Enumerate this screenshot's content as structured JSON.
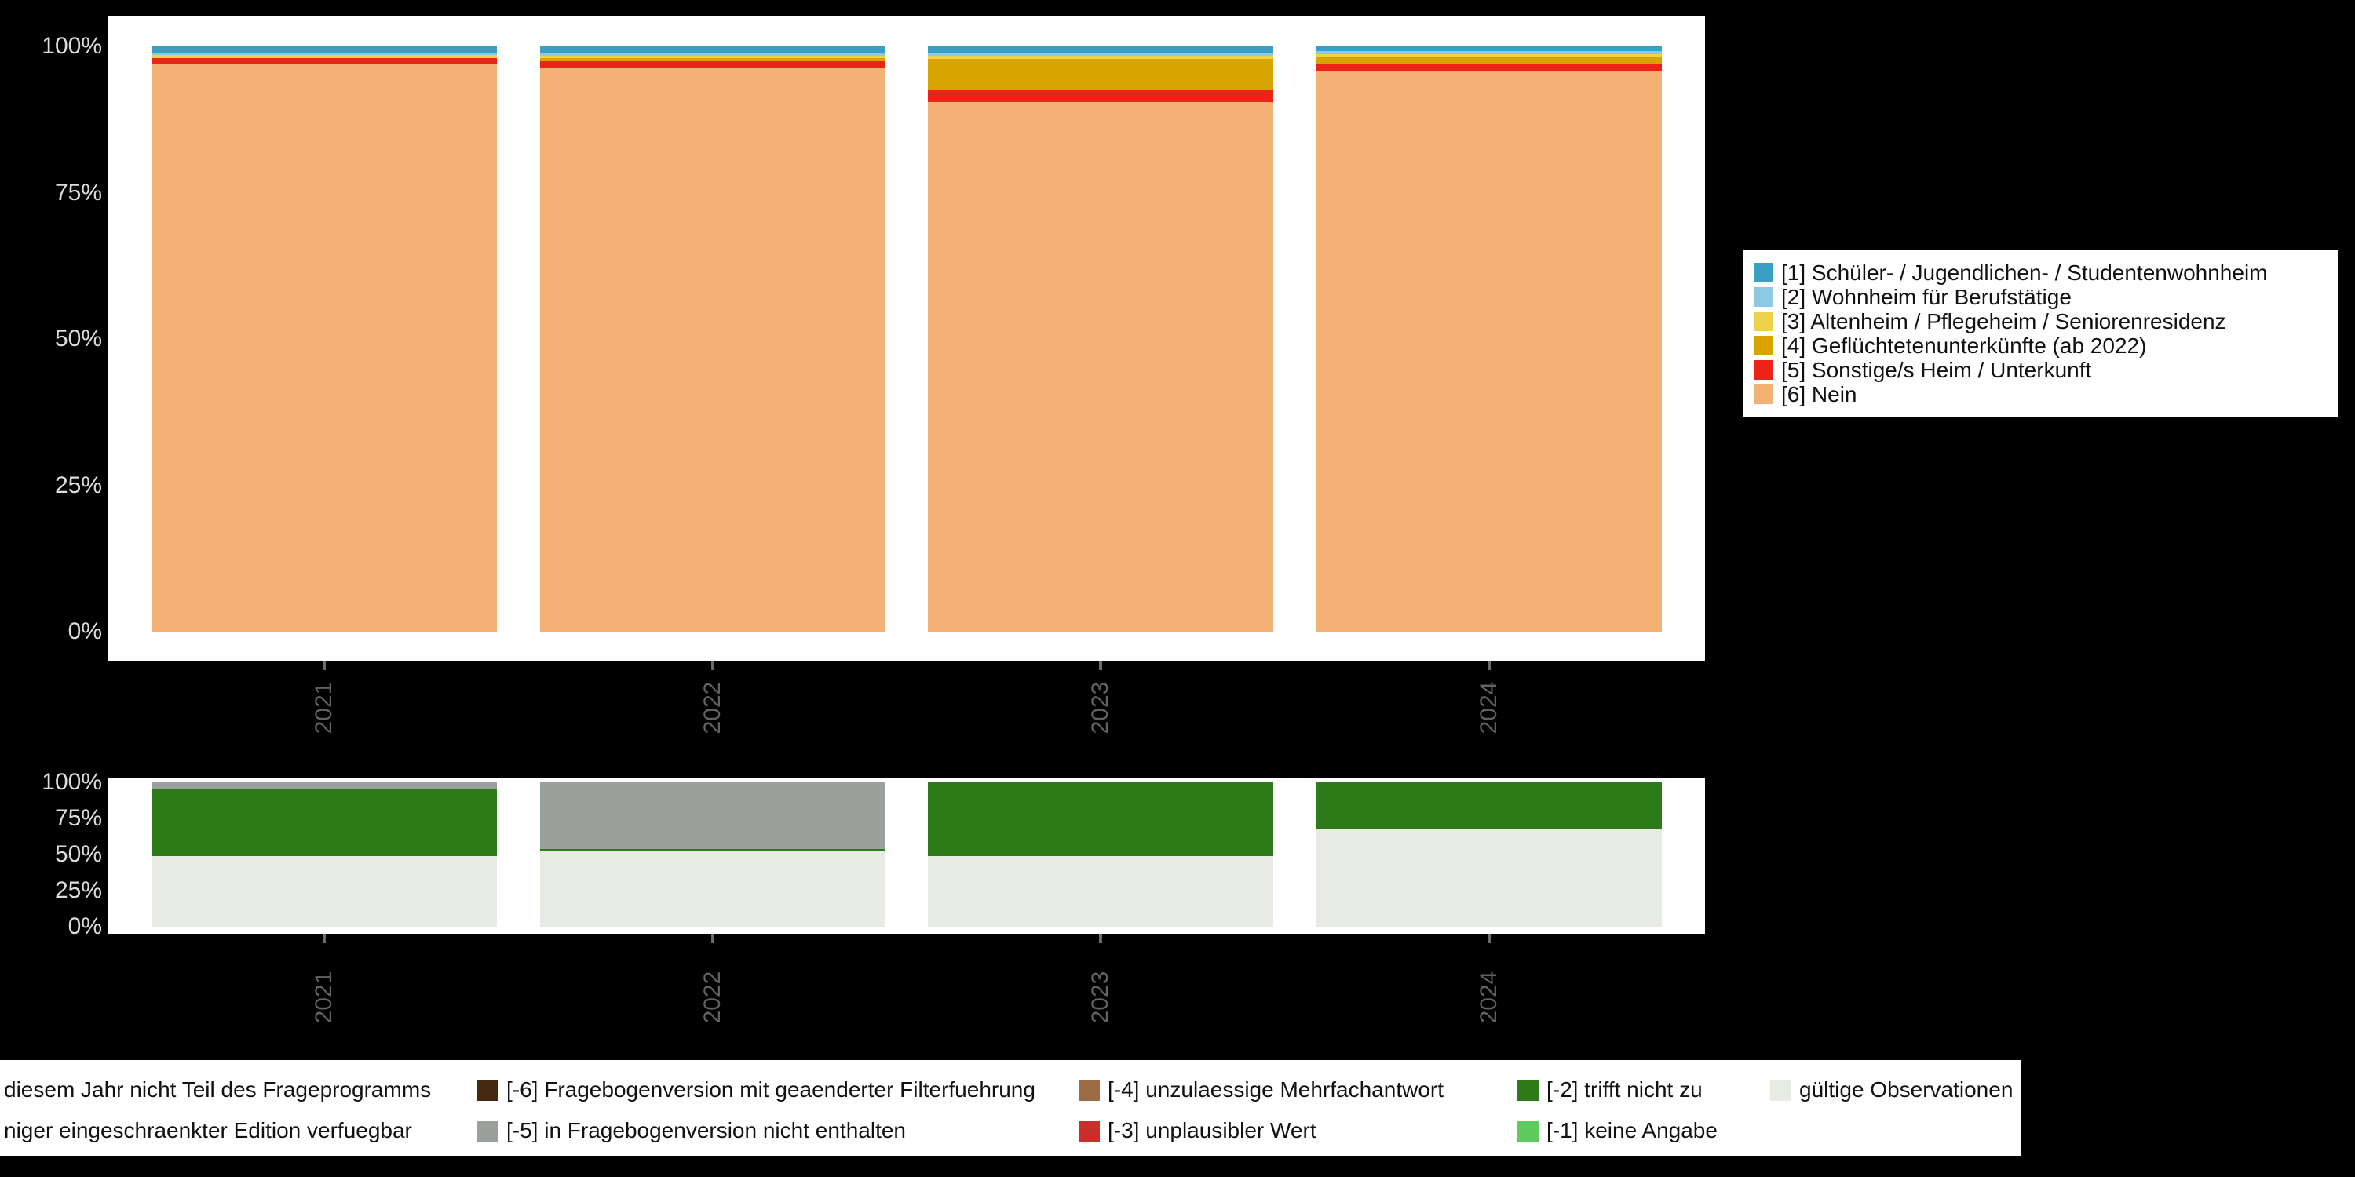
{
  "page_background": "#000000",
  "chart_data": [
    {
      "id": "top",
      "type": "bar",
      "stacked": true,
      "percent": true,
      "title": "",
      "xlabel": "",
      "ylabel": "",
      "ylim": [
        0,
        100
      ],
      "grid": false,
      "legend_position": "right",
      "categories": [
        "2021",
        "2022",
        "2023",
        "2024"
      ],
      "y_ticks": [
        "100%",
        "75%",
        "50%",
        "25%",
        "0%"
      ],
      "series": [
        {
          "name": "[1] Schüler- / Jugendlichen- / Studentenwohnheim",
          "color": "#3aa0c3",
          "values": [
            1.0,
            1.0,
            1.0,
            0.8
          ]
        },
        {
          "name": "[2] Wohnheim für Berufstätige",
          "color": "#8fc8e4",
          "values": [
            0.5,
            0.6,
            0.8,
            0.5
          ]
        },
        {
          "name": "[3] Altenheim / Pflegeheim / Seniorenresidenz",
          "color": "#ecd24a",
          "values": [
            0.5,
            0.4,
            0.4,
            0.6
          ]
        },
        {
          "name": "[4] Geflüchtetenunterkünfte (ab 2022)",
          "color": "#d8a500",
          "values": [
            0.0,
            0.5,
            5.3,
            1.2
          ]
        },
        {
          "name": "[5] Sonstige/s Heim / Unterkunft",
          "color": "#ee2318",
          "values": [
            1.0,
            1.2,
            2.0,
            1.2
          ]
        },
        {
          "name": "[6] Nein",
          "color": "#f4b176",
          "values": [
            97.0,
            96.3,
            90.5,
            95.7
          ]
        }
      ]
    },
    {
      "id": "bottom",
      "type": "bar",
      "stacked": true,
      "percent": true,
      "title": "",
      "xlabel": "",
      "ylabel": "",
      "ylim": [
        0,
        100
      ],
      "grid": false,
      "legend_position": "bottom",
      "categories": [
        "2021",
        "2022",
        "2023",
        "2024"
      ],
      "y_ticks": [
        "100%",
        "75%",
        "50%",
        "25%",
        "0%"
      ],
      "series": [
        {
          "name": "[-5] in Fragebogenversion nicht enthalten",
          "color": "#9aa09b",
          "values": [
            5,
            46,
            0,
            0
          ]
        },
        {
          "name": "[-2] trifft nicht zu",
          "color": "#2d7a18",
          "values": [
            46,
            2,
            51,
            32
          ]
        },
        {
          "name": "gültige Observationen",
          "color": "#e7ebe4",
          "values": [
            49,
            52,
            49,
            68
          ]
        }
      ]
    }
  ],
  "bottom_legend": {
    "rows": [
      {
        "items": [
          {
            "label": "diesem Jahr nicht Teil des Frageprogramms",
            "color": null,
            "truncated": true
          },
          {
            "label": "[-6] Fragebogenversion mit geaenderter Filterfuehrung",
            "color": "#44290f"
          },
          {
            "label": "[-4] unzulaessige Mehrfachantwort",
            "color": "#9c6d44"
          },
          {
            "label": "[-2] trifft nicht zu",
            "color": "#2d7a18"
          },
          {
            "label": "gültige Observationen",
            "color": "#e7ebe4"
          }
        ]
      },
      {
        "items": [
          {
            "label": "niger eingeschraenkter Edition verfuegbar",
            "color": null,
            "truncated": true
          },
          {
            "label": "[-5] in Fragebogenversion nicht enthalten",
            "color": "#9aa09b"
          },
          {
            "label": "[-3] unplausibler Wert",
            "color": "#c9302c"
          },
          {
            "label": "[-1] keine Angabe",
            "color": "#5ecb5e"
          }
        ]
      }
    ]
  }
}
